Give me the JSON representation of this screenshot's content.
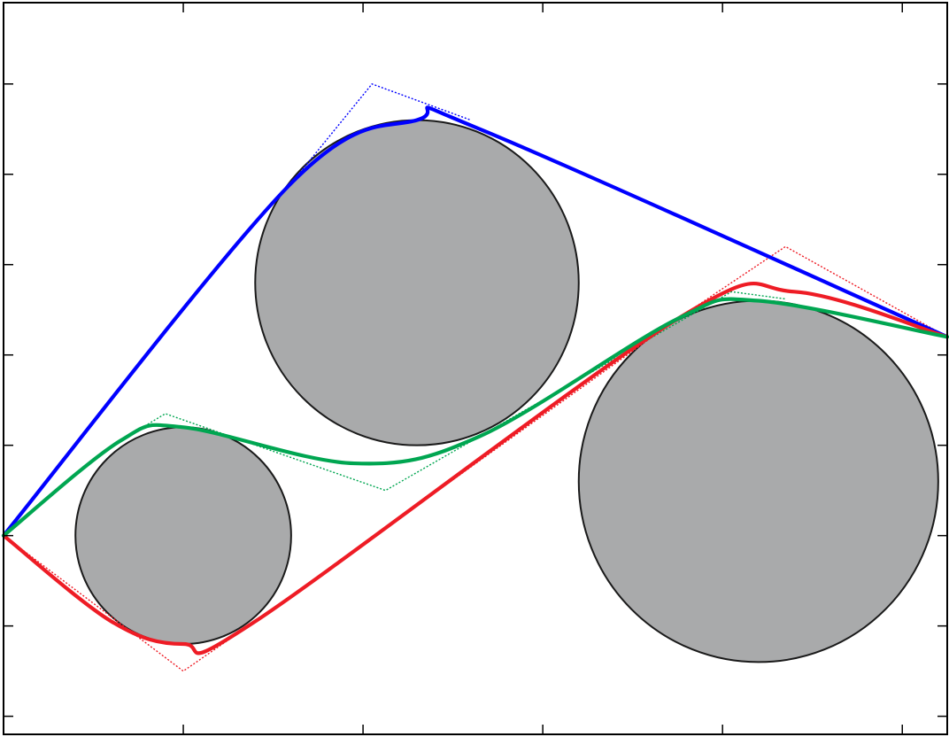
{
  "diagram": {
    "type": "path-planning-around-circular-obstacles",
    "frame": {
      "xlim": [
        0,
        10.5
      ],
      "ylim": [
        -2.2,
        5.9
      ],
      "x_ticks": [
        2,
        4,
        6,
        8,
        10
      ],
      "y_ticks": [
        -2,
        -1,
        0,
        1,
        2,
        3,
        4,
        5
      ],
      "grid": false,
      "tick_labels": false
    },
    "obstacles": [
      {
        "id": "small",
        "center": [
          2.0,
          0.0
        ],
        "radius": 1.2,
        "fill": "#a9aaab",
        "stroke": "#1a1a1a"
      },
      {
        "id": "middle",
        "center": [
          4.6,
          2.8
        ],
        "radius": 1.8,
        "fill": "#a9aaab",
        "stroke": "#1a1a1a"
      },
      {
        "id": "large",
        "center": [
          8.4,
          0.6
        ],
        "radius": 2.0,
        "fill": "#a9aaab",
        "stroke": "#1a1a1a"
      }
    ],
    "paths": [
      {
        "id": "blue-path",
        "color": "#0000ff",
        "curve": [
          [
            0.0,
            0.0
          ],
          [
            3.2,
            3.9
          ],
          [
            4.6,
            4.6
          ],
          [
            5.3,
            4.5
          ],
          [
            10.5,
            2.2
          ]
        ],
        "control_polygon": [
          [
            3.2,
            3.9
          ],
          [
            4.1,
            5.0
          ],
          [
            5.2,
            4.6
          ]
        ]
      },
      {
        "id": "red-path",
        "color": "#ee1c25",
        "curve": [
          [
            0.0,
            0.0
          ],
          [
            1.2,
            -0.95
          ],
          [
            2.0,
            -1.2
          ],
          [
            2.8,
            -0.95
          ],
          [
            7.5,
            2.4
          ],
          [
            8.8,
            2.7
          ],
          [
            10.5,
            2.2
          ]
        ],
        "control_polygon": [
          [
            0.0,
            0.0
          ],
          [
            2.0,
            -1.5
          ],
          [
            2.8,
            -0.95
          ],
          [
            7.5,
            2.4
          ],
          [
            8.7,
            3.2
          ],
          [
            10.5,
            2.2
          ]
        ]
      },
      {
        "id": "green-path",
        "color": "#00a651",
        "curve": [
          [
            0.0,
            0.0
          ],
          [
            1.3,
            1.05
          ],
          [
            2.0,
            1.2
          ],
          [
            3.9,
            0.8
          ],
          [
            5.3,
            1.1
          ],
          [
            7.5,
            2.4
          ],
          [
            8.4,
            2.6
          ],
          [
            10.5,
            2.2
          ]
        ],
        "control_polygon": [
          [
            1.3,
            1.05
          ],
          [
            1.8,
            1.35
          ],
          [
            4.25,
            0.5
          ],
          [
            5.3,
            1.1
          ],
          [
            8.1,
            2.7
          ],
          [
            8.7,
            2.62
          ]
        ]
      }
    ]
  }
}
